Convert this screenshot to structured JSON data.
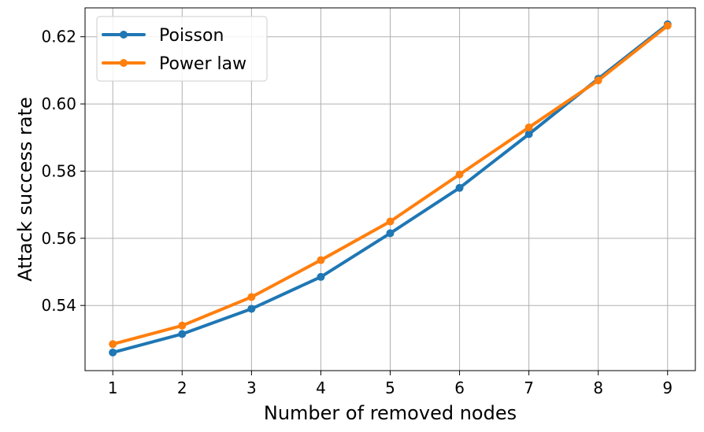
{
  "chart_data": {
    "type": "line",
    "title": "",
    "xlabel": "Number of removed nodes",
    "ylabel": "Attack success rate",
    "x": [
      1,
      2,
      3,
      4,
      5,
      6,
      7,
      8,
      9
    ],
    "xlim": [
      0.6,
      9.4
    ],
    "ylim": [
      0.5206,
      0.6286
    ],
    "xticks": [
      "1",
      "2",
      "3",
      "4",
      "5",
      "6",
      "7",
      "8",
      "9"
    ],
    "yticks": [
      "0.54",
      "0.56",
      "0.58",
      "0.60",
      "0.62"
    ],
    "ytick_values": [
      0.54,
      0.56,
      0.58,
      0.6,
      0.62
    ],
    "grid": true,
    "legend": "top-left",
    "series": [
      {
        "name": "Poisson",
        "color": "#1f77b4",
        "marker": "circle",
        "values": [
          0.526,
          0.5315,
          0.539,
          0.5485,
          0.5615,
          0.575,
          0.591,
          0.6075,
          0.6237
        ]
      },
      {
        "name": "Power law",
        "color": "#ff7f0e",
        "marker": "circle",
        "values": [
          0.5285,
          0.534,
          0.5425,
          0.5535,
          0.565,
          0.579,
          0.593,
          0.607,
          0.6233
        ]
      }
    ]
  }
}
